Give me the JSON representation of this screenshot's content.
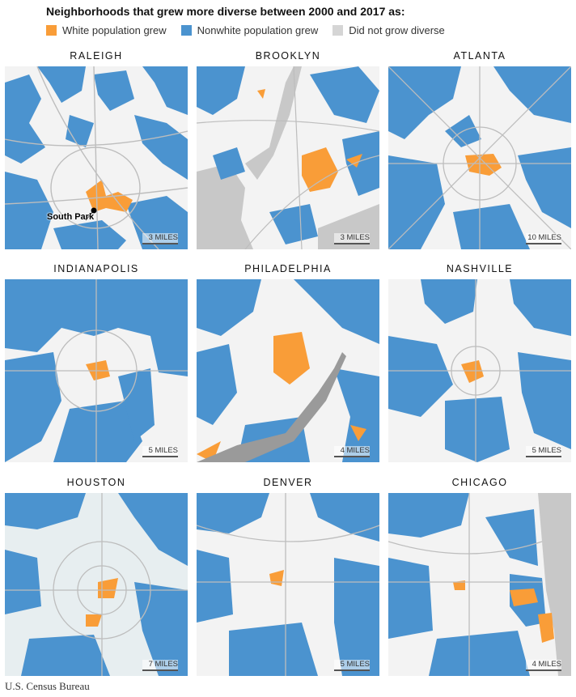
{
  "headline": "Neighborhoods that grew more diverse between 2000 and 2017 as:",
  "legend": [
    {
      "label": "White population grew",
      "color": "#f99d38"
    },
    {
      "label": "Nonwhite population grew",
      "color": "#4b93cf"
    },
    {
      "label": "Did not grow diverse",
      "color": "#d5d5d5"
    }
  ],
  "colors": {
    "white_grew": "#f99d38",
    "nonwhite_grew": "#4b93cf",
    "no_change": "#f2f2f2",
    "water": "#c8c8c8",
    "roads": "#bdbdbd"
  },
  "panels": [
    {
      "city": "RALEIGH",
      "scale": "3 MILES",
      "callout": "South Park"
    },
    {
      "city": "BROOKLYN",
      "scale": "3 MILES"
    },
    {
      "city": "ATLANTA",
      "scale": "10 MILES"
    },
    {
      "city": "INDIANAPOLIS",
      "scale": "5 MILES"
    },
    {
      "city": "PHILADELPHIA",
      "scale": "4 MILES"
    },
    {
      "city": "NASHVILLE",
      "scale": "5 MILES"
    },
    {
      "city": "HOUSTON",
      "scale": "7 MILES"
    },
    {
      "city": "DENVER",
      "scale": "5 MILES"
    },
    {
      "city": "CHICAGO",
      "scale": "4 MILES"
    }
  ],
  "source": "U.S. Census Bureau"
}
